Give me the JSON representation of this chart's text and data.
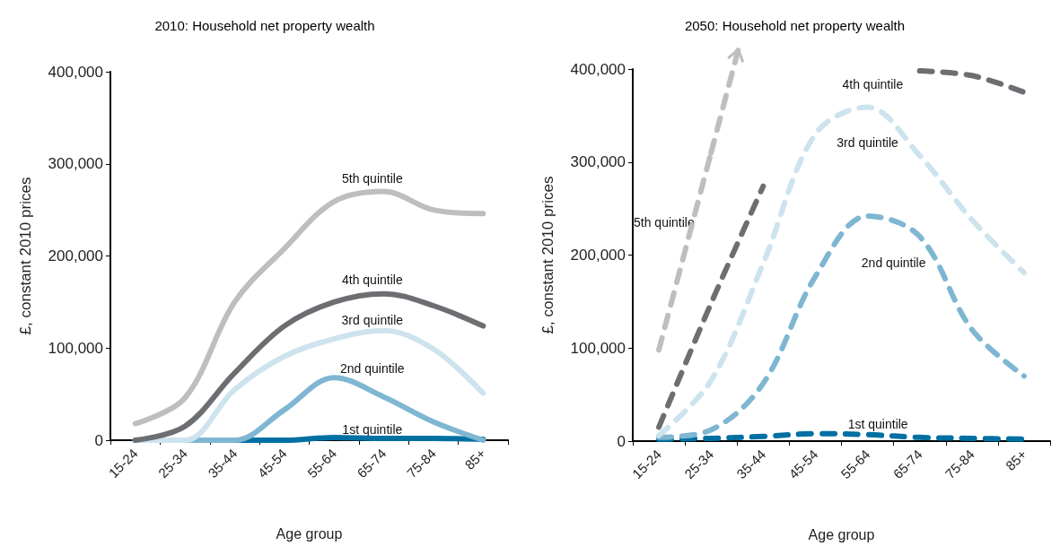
{
  "chart_data": [
    {
      "type": "line",
      "title": "2010: Household net property wealth",
      "xlabel": "Age group",
      "ylabel": "£, constant 2010 prices",
      "categories": [
        "15-24",
        "25-34",
        "35-44",
        "45-54",
        "55-64",
        "65-74",
        "75-84",
        "85+"
      ],
      "ylim": [
        0,
        400000
      ],
      "yticks": [
        {
          "value": 0,
          "label": "0"
        },
        {
          "value": 100000,
          "label": "100,000"
        },
        {
          "value": 200000,
          "label": "200,000"
        },
        {
          "value": 300000,
          "label": "300,000"
        },
        {
          "value": 400000,
          "label": "400,000"
        }
      ],
      "grid": false,
      "line_style": "solid",
      "series": [
        {
          "name": "1st quintile",
          "color": "#0070a3",
          "values": [
            0,
            0,
            0,
            0,
            3000,
            2000,
            2000,
            1000
          ]
        },
        {
          "name": "2nd quintile",
          "color": "#7fb6d2",
          "values": [
            0,
            0,
            0,
            33000,
            68000,
            47000,
            20000,
            0
          ]
        },
        {
          "name": "3rd quintile",
          "color": "#cde3ee",
          "values": [
            0,
            0,
            55000,
            91000,
            110000,
            119000,
            99000,
            51000
          ]
        },
        {
          "name": "4th quintile",
          "color": "#6d6e71",
          "values": [
            0,
            15000,
            73000,
            124000,
            150000,
            159000,
            146000,
            124000
          ]
        },
        {
          "name": "5th quintile",
          "color": "#bdbec0",
          "values": [
            18000,
            46000,
            150000,
            208000,
            259000,
            270000,
            250000,
            246000
          ]
        }
      ]
    },
    {
      "type": "line",
      "title": "2050: Household net property wealth",
      "xlabel": "Age group",
      "ylabel": "£, constant 2010 prices",
      "categories": [
        "15-24",
        "25-34",
        "35-44",
        "45-54",
        "55-64",
        "65-74",
        "75-84",
        "85+"
      ],
      "ylim": [
        0,
        400000
      ],
      "yticks": [
        {
          "value": 0,
          "label": "0"
        },
        {
          "value": 100000,
          "label": "100,000"
        },
        {
          "value": 200000,
          "label": "200,000"
        },
        {
          "value": 300000,
          "label": "300,000"
        },
        {
          "value": 400000,
          "label": "400,000"
        }
      ],
      "grid": false,
      "line_style": "dashed",
      "series": [
        {
          "name": "1st quintile",
          "color": "#0070a3",
          "values": [
            2000,
            3000,
            5000,
            8000,
            7000,
            4000,
            3000,
            2000
          ]
        },
        {
          "name": "2nd quintile",
          "color": "#7fb6d2",
          "values": [
            4000,
            12000,
            62000,
            177000,
            242000,
            220000,
            120000,
            70000
          ]
        },
        {
          "name": "3rd quintile",
          "color": "#cde3ee",
          "values": [
            6000,
            65000,
            191000,
            330000,
            359000,
            307000,
            238000,
            181000
          ]
        },
        {
          "name": "4th quintile",
          "color": "#6d6e71",
          "values": [
            15000,
            148000,
            274000,
            null,
            null,
            398000,
            393000,
            375000
          ]
        },
        {
          "name": "5th quintile",
          "color": "#bdbec0",
          "values": [
            98000,
            310000,
            null,
            null,
            null,
            null,
            null,
            null
          ]
        }
      ]
    }
  ]
}
